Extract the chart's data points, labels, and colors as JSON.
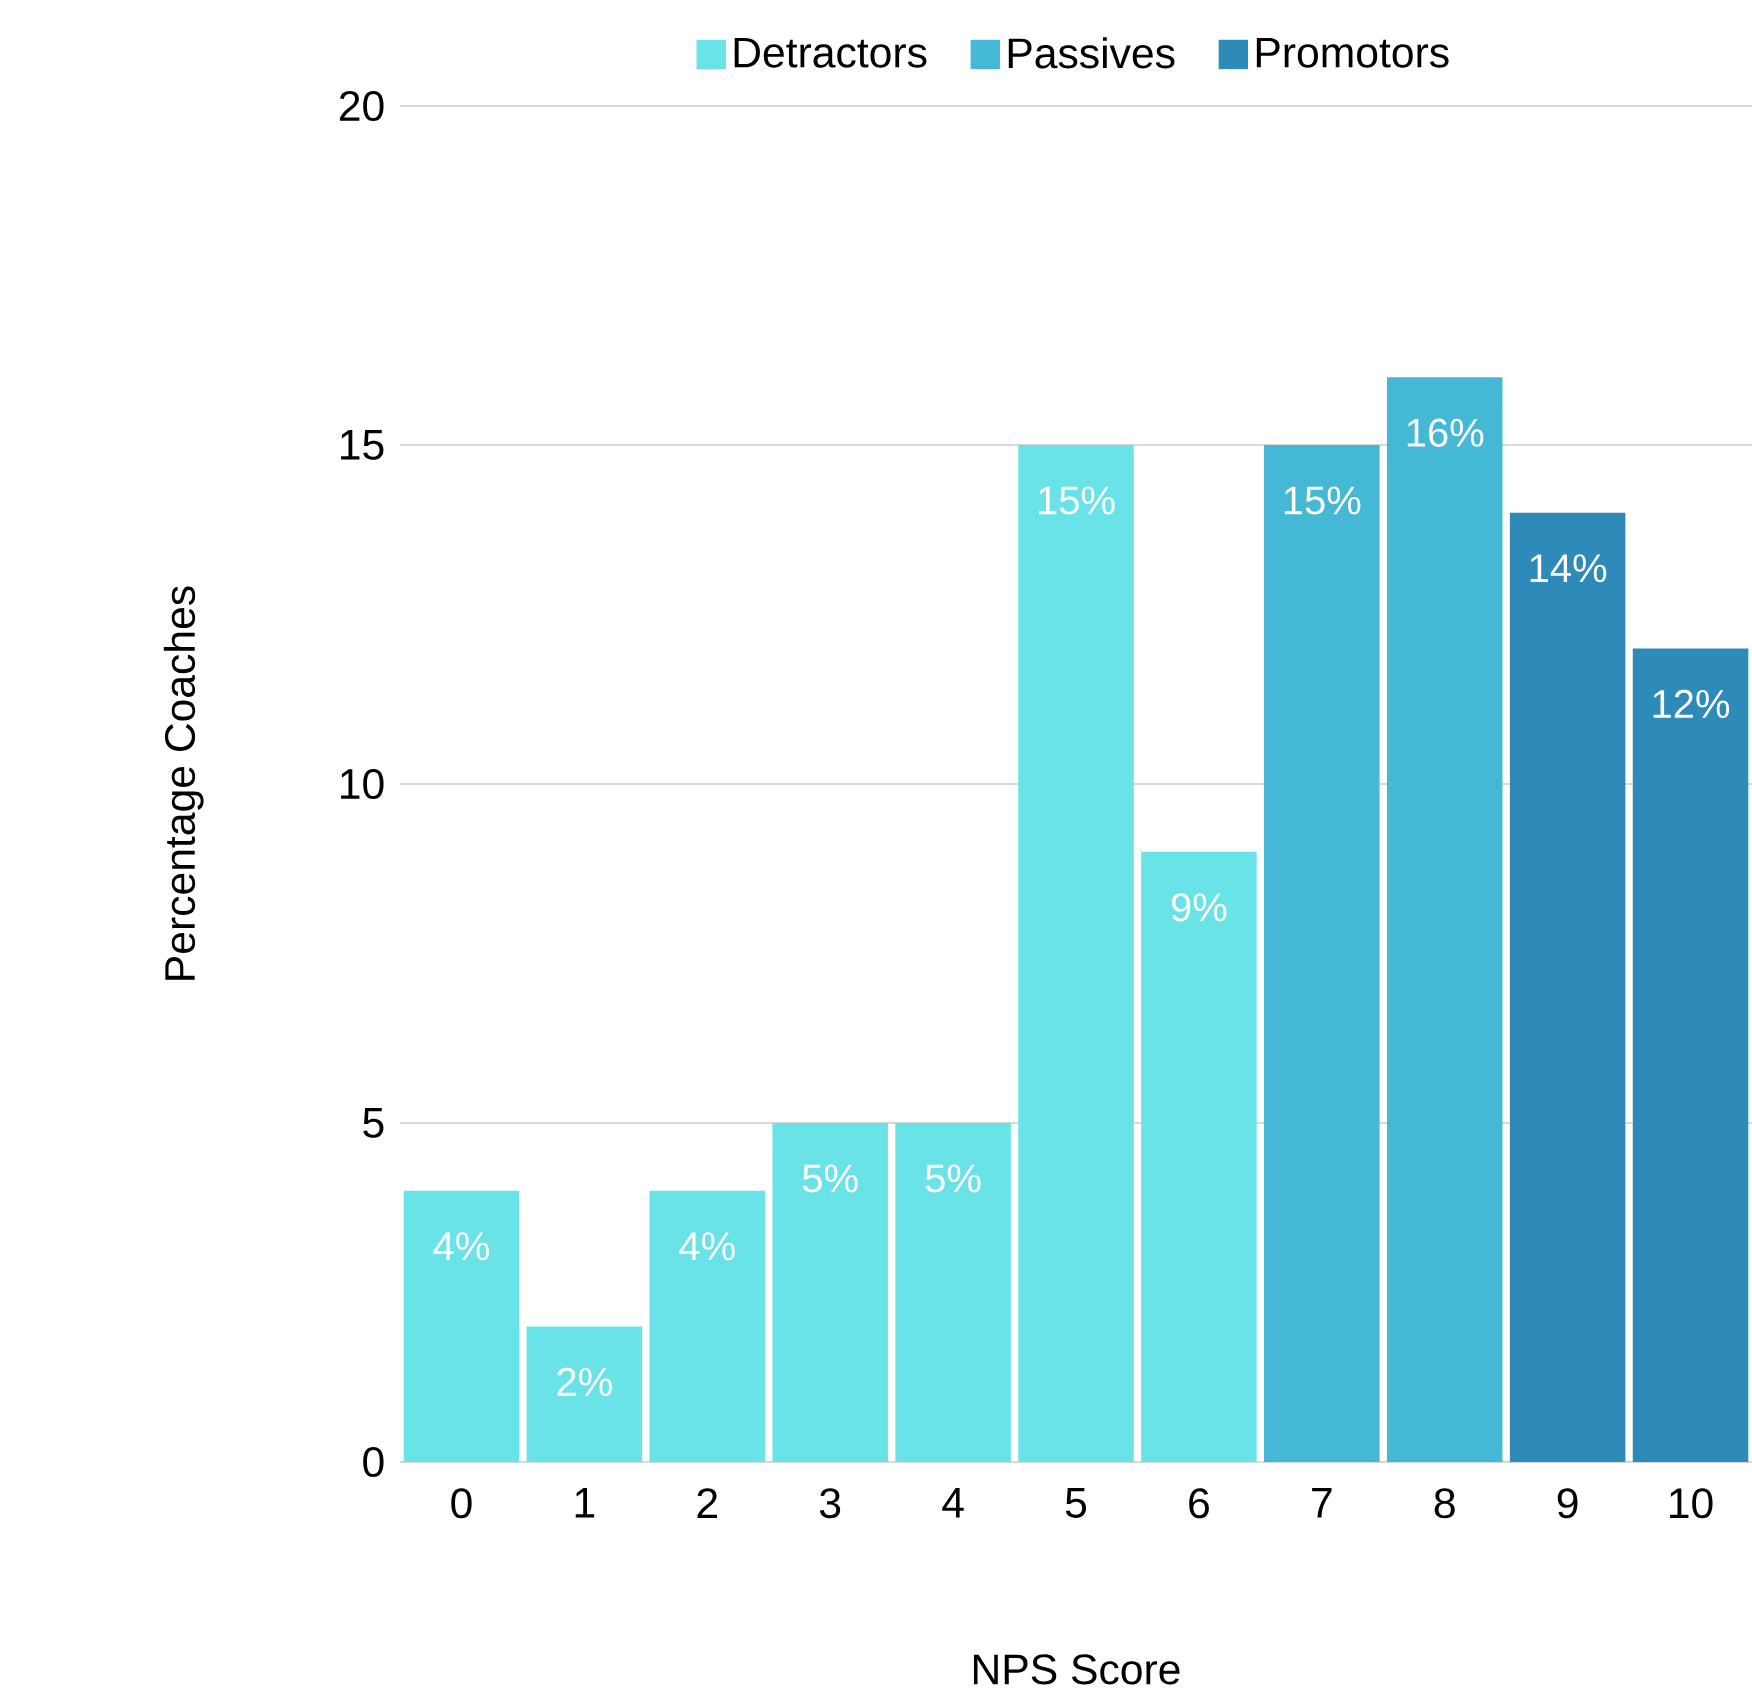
{
  "chart_data": {
    "type": "bar",
    "xlabel": "NPS Score",
    "ylabel": "Percentage Coaches",
    "categories": [
      "0",
      "1",
      "2",
      "3",
      "4",
      "5",
      "6",
      "7",
      "8",
      "9",
      "10"
    ],
    "series": [
      {
        "name": "Detractors",
        "color": "#6ae3e8",
        "values": [
          4,
          2,
          4,
          5,
          5,
          15,
          9,
          null,
          null,
          null,
          null
        ],
        "value_labels": [
          "4%",
          "2%",
          "4%",
          "5%",
          "5%",
          "15%",
          "9%",
          null,
          null,
          null,
          null
        ]
      },
      {
        "name": "Passives",
        "color": "#45b8d6",
        "values": [
          null,
          null,
          null,
          null,
          null,
          null,
          null,
          15,
          16,
          null,
          null
        ],
        "value_labels": [
          null,
          null,
          null,
          null,
          null,
          null,
          null,
          "15%",
          "16%",
          null,
          null
        ]
      },
      {
        "name": "Promotors",
        "color": "#2d8ab9",
        "values": [
          null,
          null,
          null,
          null,
          null,
          null,
          null,
          null,
          null,
          14,
          12
        ],
        "value_labels": [
          null,
          null,
          null,
          null,
          null,
          null,
          null,
          null,
          null,
          "14%",
          "12%"
        ]
      }
    ],
    "ylim": [
      0,
      20
    ],
    "yticks": [
      0,
      5,
      10,
      15,
      20
    ],
    "grid": "y",
    "legend": "top"
  }
}
